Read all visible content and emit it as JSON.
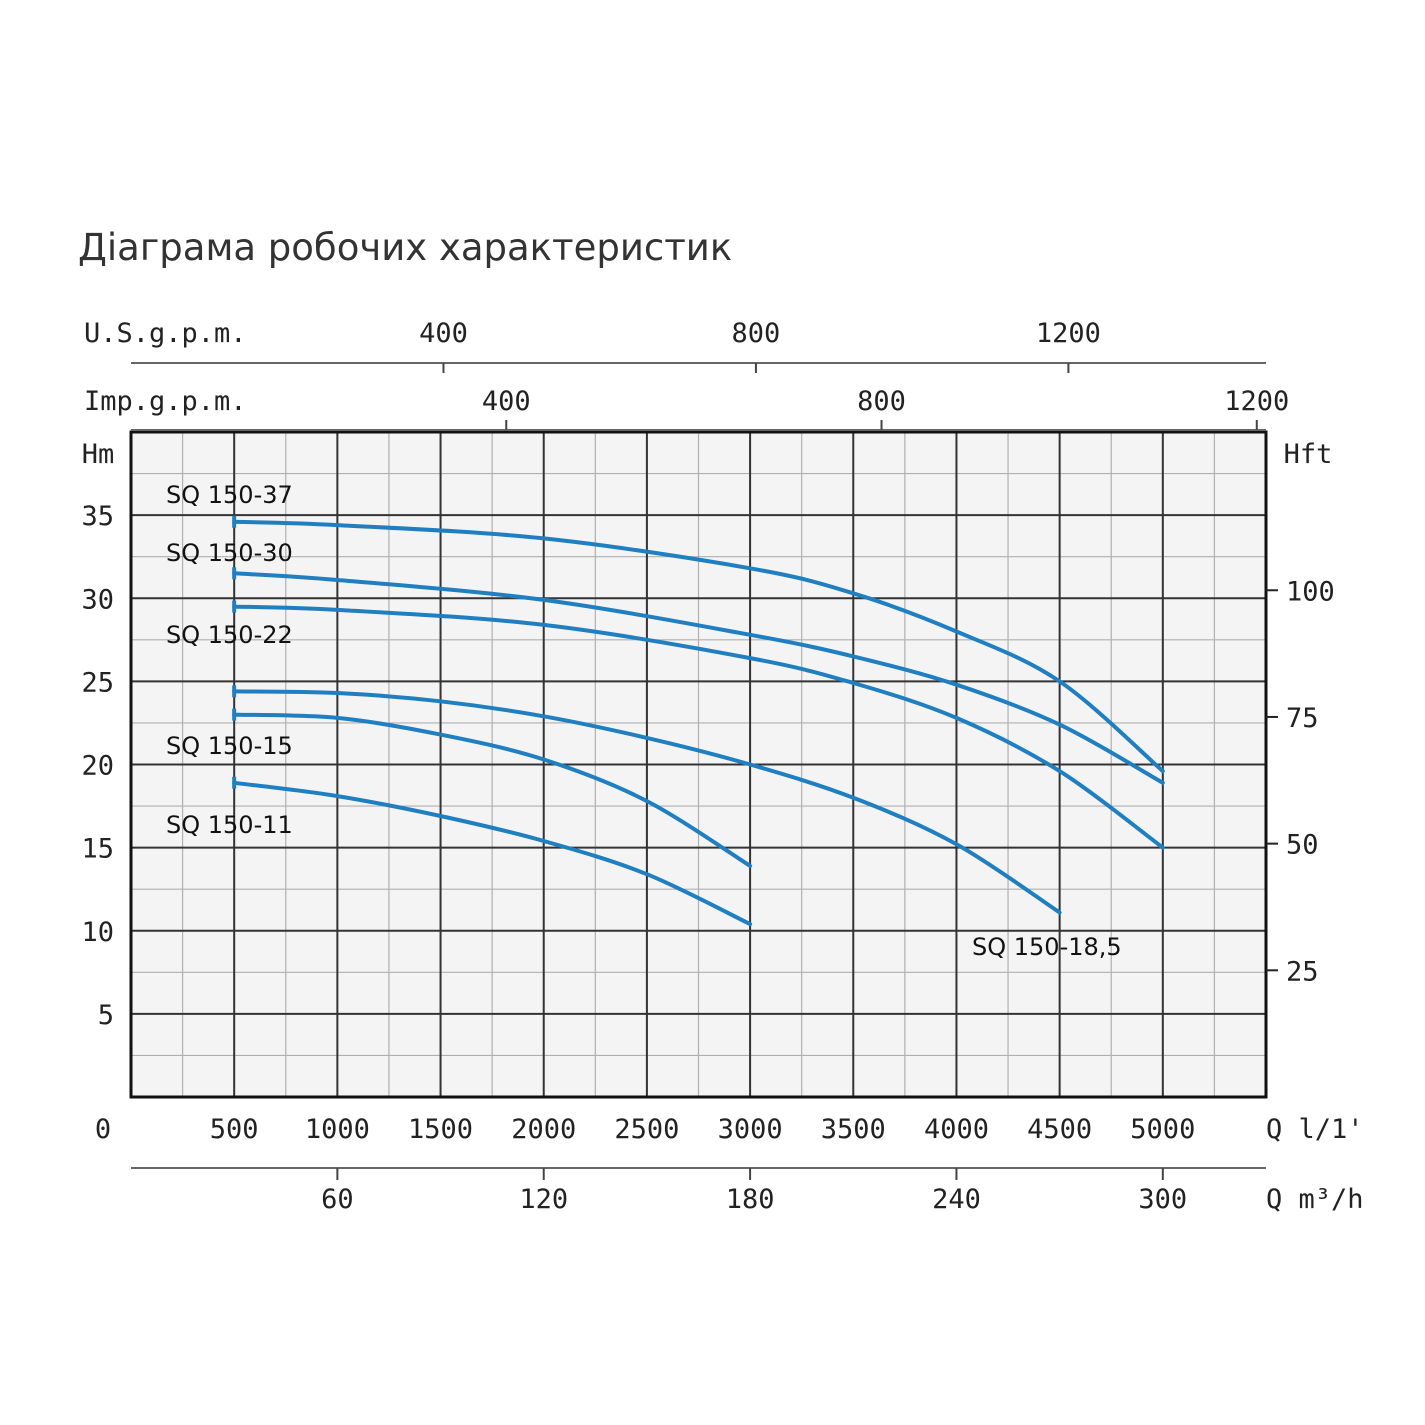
{
  "chart_data": {
    "type": "line",
    "title": "Діаграма робочих характеристик",
    "axes": {
      "x_primary": {
        "label": "Q l/1'",
        "ticks": [
          "0",
          "500",
          "1000",
          "1500",
          "2000",
          "2500",
          "3000",
          "3500",
          "4000",
          "4500",
          "5000"
        ],
        "range": [
          0,
          5500
        ]
      },
      "x_m3h": {
        "label": "Q m³/h",
        "ticks": [
          "60",
          "120",
          "180",
          "240",
          "300"
        ]
      },
      "x_us_gpm": {
        "label": "U.S.g.p.m.",
        "ticks": [
          "400",
          "800",
          "1200"
        ]
      },
      "x_imp_gpm": {
        "label": "Imp.g.p.m.",
        "ticks": [
          "400",
          "800",
          "1200"
        ]
      },
      "y_left": {
        "label": "Hm",
        "ticks": [
          "5",
          "10",
          "15",
          "20",
          "25",
          "30",
          "35"
        ],
        "range": [
          0,
          40
        ]
      },
      "y_right": {
        "label": "Hft",
        "ticks": [
          "25",
          "50",
          "75",
          "100"
        ]
      }
    },
    "grid": true,
    "series": [
      {
        "name": "SQ 150-37",
        "color": "#1f7fc0",
        "x": [
          500,
          1000,
          2000,
          3000,
          3500,
          4000,
          4500,
          5000
        ],
        "y": [
          34.6,
          34.4,
          33.6,
          31.8,
          30.3,
          28.0,
          25.0,
          19.6
        ]
      },
      {
        "name": "SQ 150-30",
        "color": "#1f7fc0",
        "x": [
          500,
          1000,
          2000,
          3000,
          3500,
          4000,
          4500,
          5000
        ],
        "y": [
          31.5,
          31.1,
          29.9,
          27.8,
          26.5,
          24.8,
          22.4,
          18.9
        ]
      },
      {
        "name": "SQ 150-22",
        "color": "#1f7fc0",
        "x": [
          500,
          1000,
          2000,
          3000,
          3500,
          4000,
          4500,
          5000
        ],
        "y": [
          29.5,
          29.3,
          28.4,
          26.4,
          24.9,
          22.8,
          19.6,
          15.0
        ]
      },
      {
        "name": "SQ 150-18,5",
        "color": "#1f7fc0",
        "x": [
          500,
          1000,
          1500,
          2000,
          2500,
          3000,
          3500,
          4000,
          4500
        ],
        "y": [
          24.4,
          24.3,
          23.8,
          22.9,
          21.6,
          20.0,
          18.0,
          15.2,
          11.1
        ]
      },
      {
        "name": "SQ 150-15",
        "color": "#1f7fc0",
        "x": [
          500,
          1000,
          1500,
          2000,
          2500,
          3000
        ],
        "y": [
          23.0,
          22.8,
          21.8,
          20.3,
          17.8,
          13.9
        ]
      },
      {
        "name": "SQ 150-11",
        "color": "#1f7fc0",
        "x": [
          500,
          1000,
          1500,
          2000,
          2500,
          3000
        ],
        "y": [
          18.9,
          18.1,
          16.9,
          15.4,
          13.4,
          10.4
        ]
      }
    ]
  },
  "style": {
    "line_color": "#1f7fc0",
    "plot_background": "#f4f4f4",
    "grid_major": "#333333",
    "grid_minor": "#b0b0b0"
  }
}
